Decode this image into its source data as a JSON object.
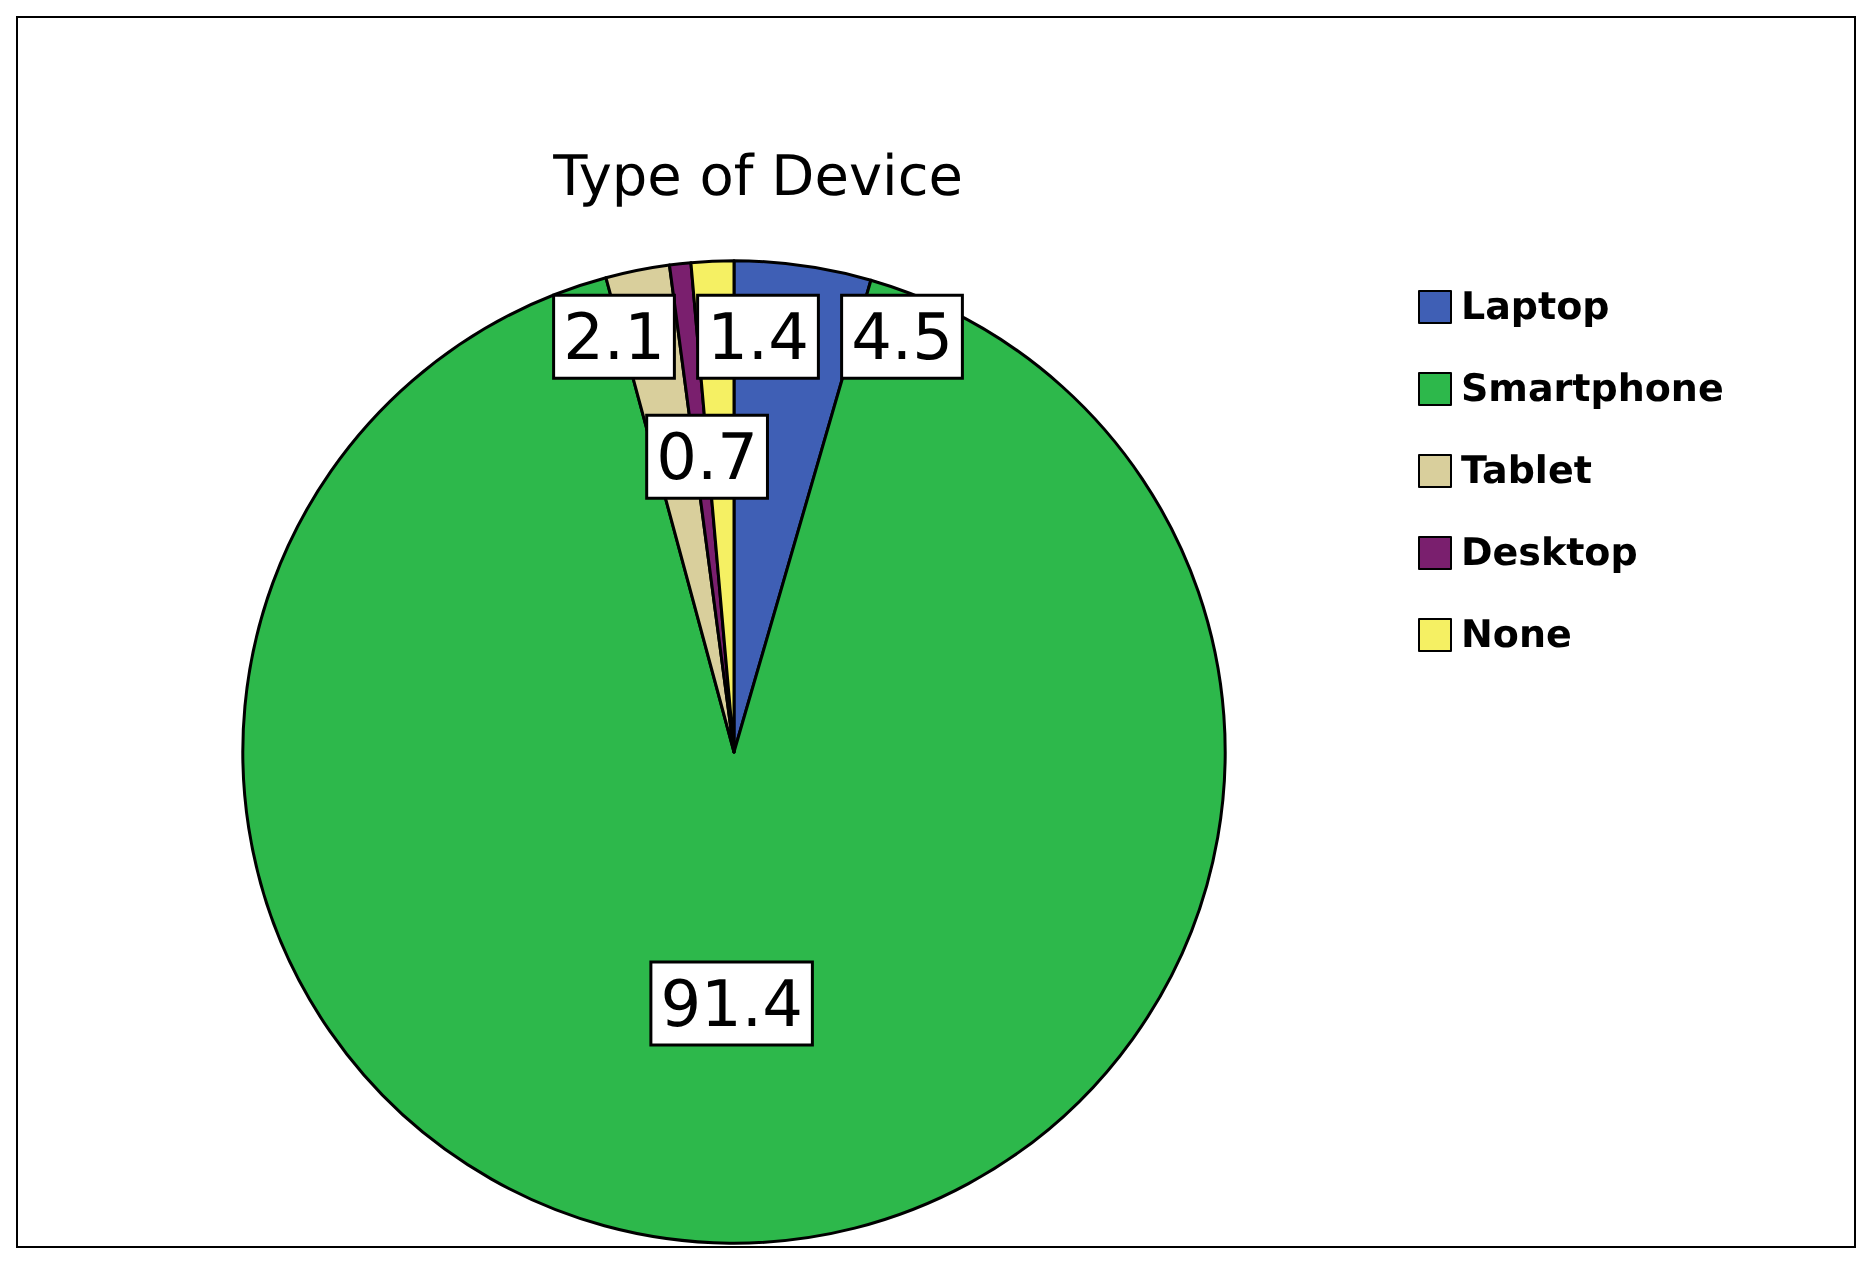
{
  "chart_data": {
    "type": "pie",
    "title": "Type of Device",
    "categories": [
      "Laptop",
      "Smartphone",
      "Tablet",
      "Desktop",
      "None"
    ],
    "values": [
      4.5,
      91.4,
      2.1,
      0.7,
      1.4
    ],
    "colors": [
      "#3f5fb5",
      "#2db84b",
      "#d9cf9c",
      "#7a1f6e",
      "#f5f063"
    ],
    "data_labels": true,
    "legend": "top right"
  }
}
